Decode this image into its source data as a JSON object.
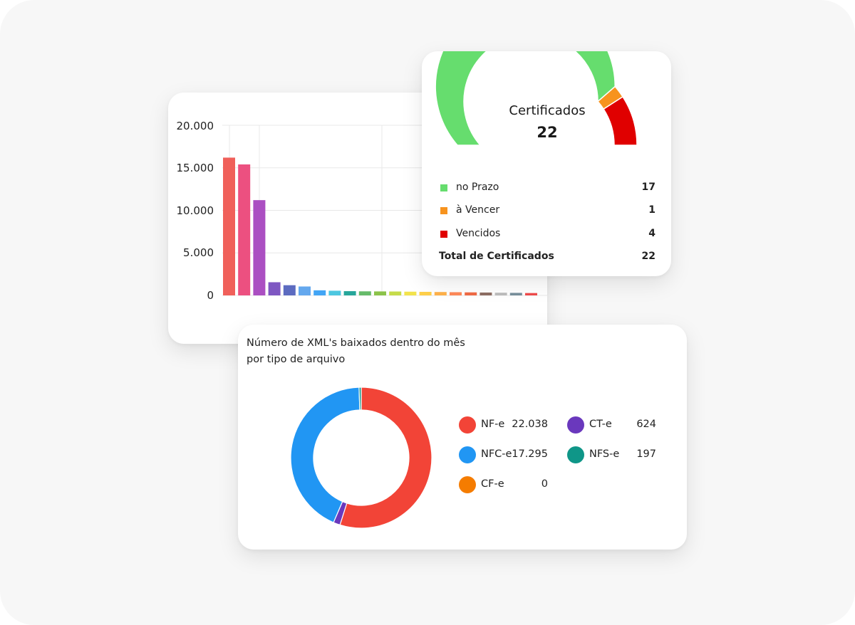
{
  "bar_chart": {
    "chart_data": {
      "type": "bar",
      "title": "",
      "xlabel": "",
      "ylabel": "",
      "ylim": [
        0,
        20000
      ],
      "y_ticks": [
        "0",
        "5.000",
        "10.000",
        "15.000",
        "20.000"
      ],
      "values": [
        16200,
        15400,
        11200,
        1550,
        1200,
        1050,
        600,
        550,
        500,
        480,
        470,
        460,
        440,
        420,
        400,
        380,
        360,
        340,
        320,
        300,
        280
      ],
      "colors": [
        "#f0605a",
        "#ec5080",
        "#ab4fc2",
        "#7e57c2",
        "#5c6bc0",
        "#64a8ee",
        "#42a5f5",
        "#4dc7e0",
        "#26a69a",
        "#66bb6a",
        "#8bc34a",
        "#c6dc4a",
        "#f2e34c",
        "#ffd04a",
        "#ffb24a",
        "#ff8a5a",
        "#f06a45",
        "#8d6e63",
        "#bdbdbd",
        "#78909c",
        "#ef4b4b"
      ],
      "grid": true
    }
  },
  "gauge": {
    "title": "Certificados",
    "total": "22",
    "chart_data": {
      "type": "pie",
      "style": "semi-donut",
      "series": [
        {
          "name": "no Prazo",
          "value": 17,
          "color": "#66dd6e"
        },
        {
          "name": "à Vencer",
          "value": 1,
          "color": "#f7931e"
        },
        {
          "name": "Vencidos",
          "value": 4,
          "color": "#e00000"
        }
      ]
    },
    "legend": [
      {
        "label": "no Prazo",
        "value": "17",
        "color": "#66dd6e"
      },
      {
        "label": "à Vencer",
        "value": "1",
        "color": "#f7931e"
      },
      {
        "label": "Vencidos",
        "value": "4",
        "color": "#e00000"
      }
    ],
    "total_label": "Total de Certificados",
    "total_value": "22"
  },
  "donut": {
    "title": "Número de XML's baixados dentro do mês por tipo de arquivo",
    "chart_data": {
      "type": "pie",
      "style": "donut",
      "series": [
        {
          "name": "NF-e",
          "value": 22038,
          "color": "#f24437"
        },
        {
          "name": "CT-e",
          "value": 624,
          "color": "#6a38bd"
        },
        {
          "name": "NFC-e",
          "value": 17295,
          "color": "#2196f3"
        },
        {
          "name": "NFS-e",
          "value": 197,
          "color": "#0f9688"
        },
        {
          "name": "CF-e",
          "value": 0,
          "color": "#f57c00"
        }
      ]
    },
    "legend": [
      {
        "name": "NF-e",
        "value": "22.038",
        "color": "#f24437"
      },
      {
        "name": "CT-e",
        "value": "624",
        "color": "#6a38bd"
      },
      {
        "name": "NFC-e",
        "value": "17.295",
        "color": "#2196f3"
      },
      {
        "name": "NFS-e",
        "value": "197",
        "color": "#0f9688"
      },
      {
        "name": "CF-e",
        "value": "0",
        "color": "#f57c00"
      }
    ]
  }
}
